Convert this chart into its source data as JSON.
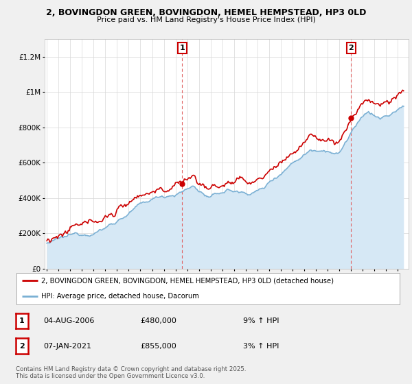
{
  "title": "2, BOVINGDON GREEN, BOVINGDON, HEMEL HEMPSTEAD, HP3 0LD",
  "subtitle": "Price paid vs. HM Land Registry's House Price Index (HPI)",
  "yticks": [
    0,
    200000,
    400000,
    600000,
    800000,
    1000000,
    1200000
  ],
  "ytick_labels": [
    "£0",
    "£200K",
    "£400K",
    "£600K",
    "£800K",
    "£1M",
    "£1.2M"
  ],
  "ylim": [
    0,
    1300000
  ],
  "xlim_left": 1994.8,
  "xlim_right": 2025.9,
  "sale1_date": 2006.58,
  "sale1_price": 480000,
  "sale1_label": "1",
  "sale2_date": 2021.02,
  "sale2_price": 855000,
  "sale2_label": "2",
  "price_line_color": "#cc0000",
  "hpi_line_color": "#7ab0d4",
  "hpi_fill_color": "#d6e8f5",
  "vline_color": "#e06060",
  "background_color": "#f0f0f0",
  "plot_bg_color": "#ffffff",
  "legend_label_price": "2, BOVINGDON GREEN, BOVINGDON, HEMEL HEMPSTEAD, HP3 0LD (detached house)",
  "legend_label_hpi": "HPI: Average price, detached house, Dacorum",
  "note_text": "Contains HM Land Registry data © Crown copyright and database right 2025.\nThis data is licensed under the Open Government Licence v3.0.",
  "table_rows": [
    {
      "num": "1",
      "date": "04-AUG-2006",
      "price": "£480,000",
      "hpi": "9% ↑ HPI"
    },
    {
      "num": "2",
      "date": "07-JAN-2021",
      "price": "£855,000",
      "hpi": "3% ↑ HPI"
    }
  ]
}
